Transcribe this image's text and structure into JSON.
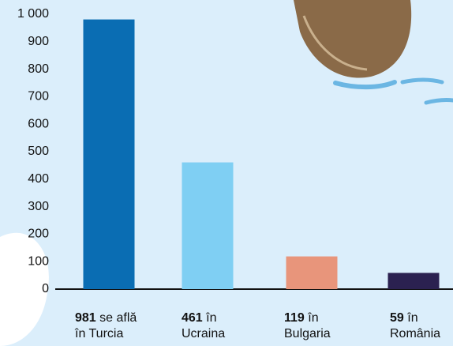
{
  "chart_data": {
    "type": "bar",
    "categories": [
      "se află în Turcia",
      "în Ucraina",
      "în Bulgaria",
      "în România"
    ],
    "values": [
      981,
      461,
      119,
      59
    ],
    "colors": [
      "#0a6db3",
      "#7fcff3",
      "#e8957b",
      "#2b2150"
    ],
    "ylim": [
      0,
      1000
    ],
    "yticks": [
      0,
      100,
      200,
      300,
      400,
      500,
      600,
      700,
      800,
      900,
      {
        "value": 1000,
        "label": "1 000"
      }
    ]
  }
}
